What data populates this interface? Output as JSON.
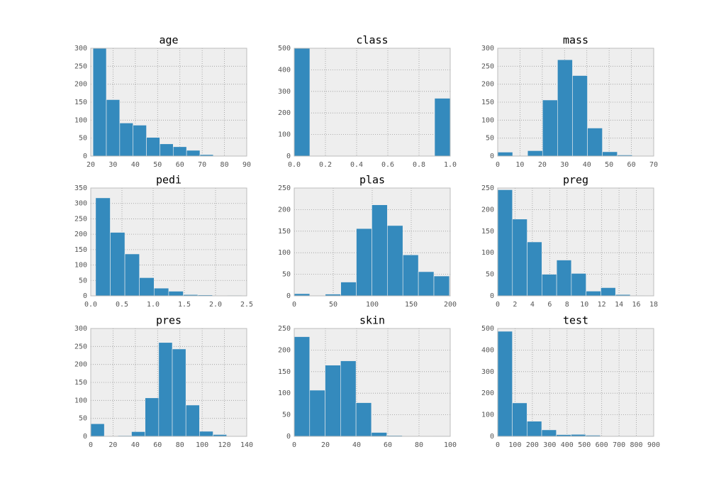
{
  "chart_data": [
    {
      "type": "histogram",
      "title": "age",
      "bins": [
        21,
        27,
        33,
        39,
        45,
        51,
        57,
        63,
        69,
        75,
        81
      ],
      "counts": [
        300,
        157,
        92,
        86,
        52,
        34,
        26,
        16,
        4,
        1
      ],
      "color": "#348abd",
      "xlim": [
        20,
        90
      ],
      "xticks": [
        20,
        30,
        40,
        50,
        60,
        70,
        80,
        90
      ],
      "ylim": [
        0,
        300
      ],
      "yticks": [
        0,
        50,
        100,
        150,
        200,
        250,
        300
      ],
      "grid": true
    },
    {
      "type": "histogram",
      "title": "class",
      "bins": [
        0,
        0.1,
        0.2,
        0.3,
        0.4,
        0.5,
        0.6,
        0.7,
        0.8,
        0.9,
        1
      ],
      "counts": [
        500,
        0,
        0,
        0,
        0,
        0,
        0,
        0,
        0,
        268
      ],
      "color": "#348abd",
      "xlim": [
        0,
        1
      ],
      "xticks": [
        {
          "value": 0,
          "label": "0.0"
        },
        0.2,
        0.4,
        0.6,
        0.8,
        {
          "value": 1,
          "label": "1.0"
        }
      ],
      "ylim": [
        0,
        500
      ],
      "yticks": [
        0,
        100,
        200,
        300,
        400,
        500
      ],
      "grid": true
    },
    {
      "type": "histogram",
      "title": "mass",
      "bins": [
        0,
        6.71,
        13.42,
        20.13,
        26.84,
        33.55,
        40.26,
        46.97,
        53.68,
        60.39,
        67.1
      ],
      "counts": [
        11,
        0,
        15,
        156,
        268,
        224,
        78,
        12,
        3,
        1
      ],
      "color": "#348abd",
      "xlim": [
        0,
        70
      ],
      "xticks": [
        0,
        10,
        20,
        30,
        40,
        50,
        60,
        70
      ],
      "ylim": [
        0,
        300
      ],
      "yticks": [
        0,
        50,
        100,
        150,
        200,
        250,
        300
      ],
      "grid": true
    },
    {
      "type": "histogram",
      "title": "pedi",
      "bins": [
        0.078,
        0.3122,
        0.5464,
        0.7806,
        1.0148,
        1.249,
        1.4832,
        1.7174,
        1.9516,
        2.1858,
        2.42
      ],
      "counts": [
        318,
        206,
        136,
        59,
        25,
        15,
        4,
        3,
        0,
        2
      ],
      "color": "#348abd",
      "xlim": [
        0,
        2.5
      ],
      "xticks": [
        {
          "value": 0,
          "label": "0.0"
        },
        0.5,
        {
          "value": 1,
          "label": "1.0"
        },
        1.5,
        {
          "value": 2,
          "label": "2.0"
        },
        2.5
      ],
      "ylim": [
        0,
        350
      ],
      "yticks": [
        0,
        50,
        100,
        150,
        200,
        250,
        300,
        350
      ],
      "grid": true
    },
    {
      "type": "histogram",
      "title": "plas",
      "bins": [
        0,
        19.9,
        39.8,
        59.7,
        79.6,
        99.5,
        119.4,
        139.3,
        159.2,
        179.1,
        199
      ],
      "counts": [
        5,
        0,
        4,
        32,
        156,
        211,
        163,
        95,
        56,
        46
      ],
      "color": "#348abd",
      "xlim": [
        0,
        200
      ],
      "xticks": [
        0,
        50,
        100,
        150,
        200
      ],
      "ylim": [
        0,
        250
      ],
      "yticks": [
        0,
        50,
        100,
        150,
        200,
        250
      ],
      "grid": true
    },
    {
      "type": "histogram",
      "title": "preg",
      "bins": [
        0,
        1.7,
        3.4,
        5.1,
        6.8,
        8.5,
        10.2,
        11.9,
        13.6,
        15.3,
        17
      ],
      "counts": [
        246,
        178,
        125,
        50,
        83,
        52,
        11,
        19,
        3,
        1
      ],
      "color": "#348abd",
      "xlim": [
        0,
        18
      ],
      "xticks": [
        0,
        2,
        4,
        6,
        8,
        10,
        12,
        14,
        16,
        18
      ],
      "ylim": [
        0,
        250
      ],
      "yticks": [
        0,
        50,
        100,
        150,
        200,
        250
      ],
      "grid": true
    },
    {
      "type": "histogram",
      "title": "pres",
      "bins": [
        0,
        12.2,
        24.4,
        36.6,
        48.8,
        61,
        73.2,
        85.4,
        97.6,
        109.8,
        122
      ],
      "counts": [
        35,
        1,
        2,
        13,
        107,
        261,
        243,
        87,
        14,
        5
      ],
      "color": "#348abd",
      "xlim": [
        0,
        140
      ],
      "xticks": [
        0,
        20,
        40,
        60,
        80,
        100,
        120,
        140
      ],
      "ylim": [
        0,
        300
      ],
      "yticks": [
        0,
        50,
        100,
        150,
        200,
        250,
        300
      ],
      "grid": true
    },
    {
      "type": "histogram",
      "title": "skin",
      "bins": [
        0,
        9.9,
        19.8,
        29.7,
        39.6,
        49.5,
        59.4,
        69.3,
        79.2,
        89.1,
        99
      ],
      "counts": [
        231,
        107,
        165,
        175,
        78,
        9,
        2,
        0,
        0,
        1
      ],
      "color": "#348abd",
      "xlim": [
        0,
        100
      ],
      "xticks": [
        0,
        20,
        40,
        60,
        80,
        100
      ],
      "ylim": [
        0,
        250
      ],
      "yticks": [
        0,
        50,
        100,
        150,
        200,
        250
      ],
      "grid": true
    },
    {
      "type": "histogram",
      "title": "test",
      "bins": [
        0,
        84.6,
        169.2,
        253.8,
        338.4,
        423,
        507.6,
        592.2,
        676.8,
        761.4,
        846
      ],
      "counts": [
        487,
        155,
        70,
        30,
        8,
        9,
        5,
        1,
        2,
        1
      ],
      "color": "#348abd",
      "xlim": [
        0,
        900
      ],
      "xticks": [
        0,
        100,
        200,
        300,
        400,
        500,
        600,
        700,
        800,
        900
      ],
      "ylim": [
        0,
        500
      ],
      "yticks": [
        0,
        100,
        200,
        300,
        400,
        500
      ],
      "grid": true
    }
  ]
}
